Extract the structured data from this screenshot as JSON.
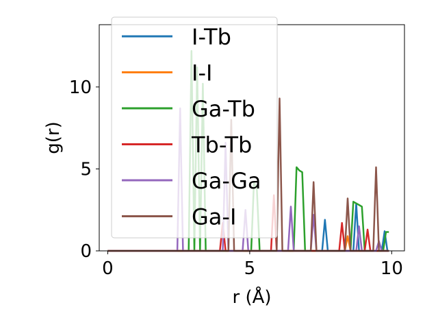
{
  "chart_data": {
    "type": "line",
    "xlabel": "r (Å)",
    "ylabel": "g(r)",
    "xlim": [
      -0.3,
      10.45
    ],
    "ylim": [
      0,
      13.8
    ],
    "x_ticks": [
      0,
      5,
      10
    ],
    "y_ticks": [
      0,
      5,
      10
    ],
    "grid": false,
    "legend_position": "upper-left",
    "series": [
      {
        "name": "I-Tb",
        "color": "#1f77b4",
        "x": [
          0,
          7.55,
          7.65,
          7.75,
          8.65,
          8.75,
          8.85,
          9.65,
          9.75,
          9.85,
          9.9
        ],
        "y": [
          0,
          0,
          1.9,
          0,
          0,
          2.9,
          0,
          0,
          1.2,
          0,
          0
        ]
      },
      {
        "name": "I-I",
        "color": "#ff7f0e",
        "x": [
          0,
          8.35,
          8.45,
          8.55,
          9.9
        ],
        "y": [
          0,
          0,
          0.9,
          0,
          0
        ]
      },
      {
        "name": "Ga-Tb",
        "color": "#2ca02c",
        "x": [
          0,
          2.85,
          2.95,
          3.05,
          3.15,
          3.25,
          3.35,
          3.45,
          5.05,
          5.15,
          5.25,
          5.35,
          6.55,
          6.65,
          6.75,
          6.85,
          6.95,
          8.55,
          8.65,
          8.75,
          8.85,
          8.95,
          9.05,
          9.15,
          9.7,
          9.8,
          9.9
        ],
        "y": [
          0,
          0,
          12.2,
          0,
          11.2,
          0,
          10.2,
          0,
          0,
          4.2,
          3.8,
          0,
          0,
          5.1,
          4.9,
          4.8,
          0,
          0,
          3.0,
          2.9,
          2.8,
          2.7,
          0,
          0,
          0,
          1.15,
          1.15
        ]
      },
      {
        "name": "Tb-Tb",
        "color": "#d62728",
        "x": [
          0,
          3.95,
          4.05,
          4.15,
          5.75,
          5.85,
          5.95,
          8.15,
          8.25,
          8.35,
          9.05,
          9.15,
          9.25,
          9.9
        ],
        "y": [
          0,
          0,
          1.7,
          0,
          0,
          3.4,
          0,
          0,
          1.7,
          0,
          0,
          1.3,
          0,
          0
        ]
      },
      {
        "name": "Ga-Ga",
        "color": "#9467bd",
        "x": [
          0,
          2.45,
          2.55,
          2.65,
          4.05,
          4.15,
          4.25,
          4.75,
          4.85,
          4.95,
          6.35,
          6.45,
          6.55,
          7.15,
          7.25,
          7.35,
          8.75,
          8.85,
          8.95,
          9.45,
          9.55,
          9.65,
          9.9
        ],
        "y": [
          0,
          0,
          8.7,
          0,
          0,
          6.6,
          0,
          0,
          2.5,
          0,
          0,
          2.7,
          0,
          0,
          2.2,
          0,
          0,
          1.5,
          0,
          0,
          0.6,
          0,
          0
        ]
      },
      {
        "name": "Ga-I",
        "color": "#8c564b",
        "x": [
          0,
          4.25,
          4.35,
          4.45,
          5.95,
          6.05,
          6.15,
          7.15,
          7.25,
          7.35,
          8.35,
          8.45,
          8.55,
          9.35,
          9.45,
          9.55,
          9.9
        ],
        "y": [
          0,
          0,
          8.0,
          0,
          0,
          9.3,
          0,
          0,
          4.2,
          0,
          0,
          3.2,
          0,
          0,
          5.1,
          0,
          0
        ]
      }
    ]
  }
}
